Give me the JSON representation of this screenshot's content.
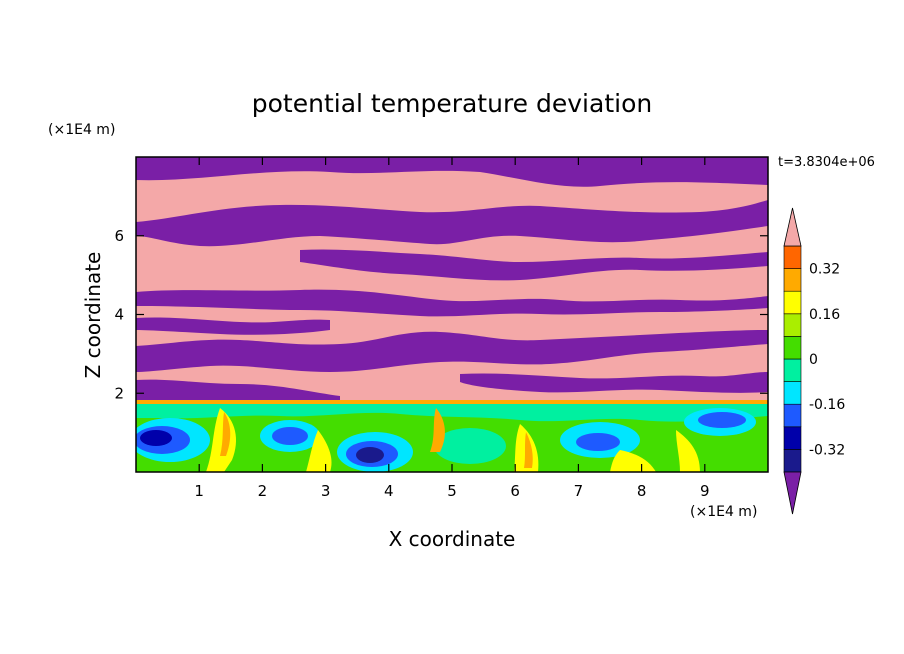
{
  "chart_data": {
    "type": "heatmap",
    "title": "potential temperature deviation",
    "xlabel": "X coordinate",
    "ylabel": "Z coordinate",
    "x_unit": "(×1E4 m)",
    "y_unit": "(×1E4 m)",
    "time_label": "t=3.8304e+06",
    "xlim": [
      0,
      10
    ],
    "ylim": [
      0,
      8
    ],
    "x_ticks": [
      1,
      2,
      3,
      4,
      5,
      6,
      7,
      8,
      9
    ],
    "y_ticks": [
      2,
      4,
      6
    ],
    "grid": false,
    "legend_position": "right",
    "colorbar": {
      "levels": [
        -0.4,
        -0.32,
        -0.24,
        -0.16,
        -0.08,
        0,
        0.08,
        0.16,
        0.24,
        0.32,
        0.4
      ],
      "tick_labels": [
        "-0.32",
        "-0.16",
        "0",
        "0.16",
        "0.32"
      ],
      "tick_values": [
        -0.32,
        -0.16,
        0,
        0.16,
        0.32
      ],
      "colors": [
        "#1a1a8c",
        "#0000aa",
        "#1e5aff",
        "#00e6ff",
        "#00f0a0",
        "#44dd00",
        "#aaee00",
        "#ffff00",
        "#ffaa00",
        "#ff6600",
        "#ff2020"
      ],
      "under_color": "#7a1fa6",
      "over_color": "#f4a8a8",
      "extend": "both"
    },
    "field_description_colors": {
      "upper_layer_low": "#7a1fa6",
      "upper_layer_high": "#f4a8a8"
    },
    "turbulent_layer_top_z": 1.75
  }
}
